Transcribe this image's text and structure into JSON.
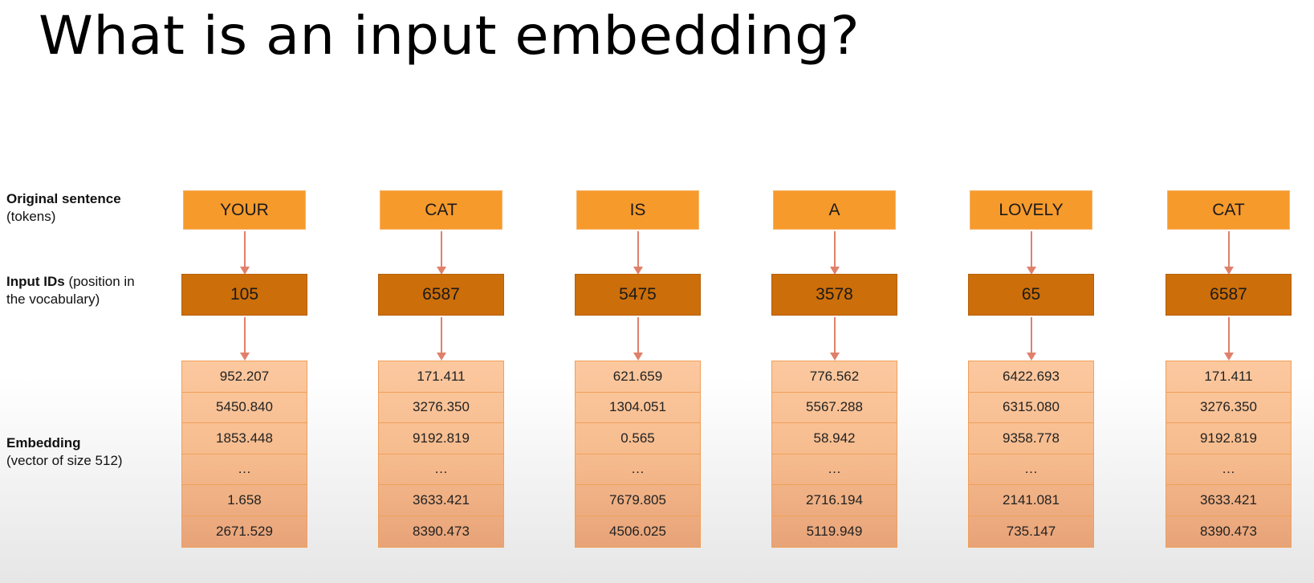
{
  "title": "What is an input embedding?",
  "labels": {
    "sentence_bold": "Original sentence",
    "sentence_light": "(tokens)",
    "ids_bold": "Input IDs",
    "ids_light": " (position in the vocabulary)",
    "embedding_bold": "Embedding",
    "embedding_light": "(vector of size 512)"
  },
  "columns": [
    {
      "token": "YOUR",
      "id": "105",
      "embedding": [
        "952.207",
        "5450.840",
        "1853.448",
        "…",
        "1.658",
        "2671.529"
      ]
    },
    {
      "token": "CAT",
      "id": "6587",
      "embedding": [
        "171.411",
        "3276.350",
        "9192.819",
        "…",
        "3633.421",
        "8390.473"
      ]
    },
    {
      "token": "IS",
      "id": "5475",
      "embedding": [
        "621.659",
        "1304.051",
        "0.565",
        "…",
        "7679.805",
        "4506.025"
      ]
    },
    {
      "token": "A",
      "id": "3578",
      "embedding": [
        "776.562",
        "5567.288",
        "58.942",
        "…",
        "2716.194",
        "5119.949"
      ]
    },
    {
      "token": "LOVELY",
      "id": "65",
      "embedding": [
        "6422.693",
        "6315.080",
        "9358.778",
        "…",
        "2141.081",
        "735.147"
      ]
    },
    {
      "token": "CAT",
      "id": "6587",
      "embedding": [
        "171.411",
        "3276.350",
        "9192.819",
        "…",
        "3633.421",
        "8390.473"
      ]
    }
  ],
  "colors": {
    "token_box": "#f79a2c",
    "id_box": "#cc6e0a",
    "embedding_box": "#f6bc8e",
    "arrow": "#e0806a"
  }
}
